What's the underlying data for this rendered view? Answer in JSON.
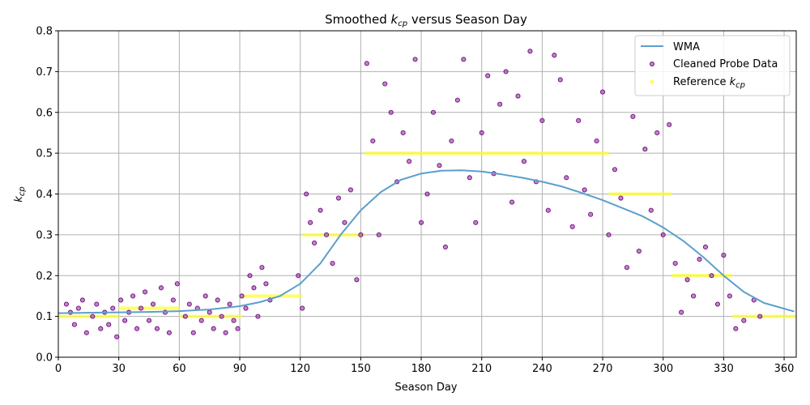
{
  "chart_data": {
    "type": "line+scatter",
    "title": "Smoothed k_cp versus Season Day",
    "title_parts": {
      "prefix": "Smoothed ",
      "symbol": "k",
      "sub": "cp",
      "suffix": " versus Season Day"
    },
    "xlabel": "Season Day",
    "ylabel": {
      "symbol": "k",
      "sub": "cp"
    },
    "xlim": [
      0,
      366
    ],
    "ylim": [
      0.0,
      0.8
    ],
    "xticks": [
      0,
      30,
      60,
      90,
      120,
      150,
      180,
      210,
      240,
      270,
      300,
      330,
      360
    ],
    "yticks": [
      0.0,
      0.1,
      0.2,
      0.3,
      0.4,
      0.5,
      0.6,
      0.7,
      0.8
    ],
    "grid": true,
    "legend_position": "top-right",
    "legend": [
      {
        "label": "WMA"
      },
      {
        "label": "Cleaned Probe Data"
      },
      {
        "label_prefix": "Reference ",
        "symbol": "k",
        "sub": "cp"
      }
    ],
    "series": [
      {
        "name": "WMA",
        "kind": "line",
        "color": "#5b9fcb",
        "x": [
          0,
          15,
          30,
          45,
          60,
          75,
          90,
          100,
          110,
          120,
          130,
          140,
          150,
          160,
          170,
          180,
          190,
          200,
          210,
          220,
          230,
          240,
          250,
          260,
          270,
          280,
          290,
          300,
          310,
          320,
          330,
          340,
          350,
          365
        ],
        "y": [
          0.108,
          0.109,
          0.11,
          0.111,
          0.113,
          0.117,
          0.125,
          0.135,
          0.15,
          0.18,
          0.23,
          0.3,
          0.36,
          0.405,
          0.435,
          0.45,
          0.457,
          0.458,
          0.455,
          0.448,
          0.44,
          0.43,
          0.418,
          0.402,
          0.385,
          0.365,
          0.345,
          0.318,
          0.285,
          0.245,
          0.2,
          0.16,
          0.133,
          0.112
        ]
      },
      {
        "name": "Cleaned Probe Data",
        "kind": "scatter",
        "color": "#9b30a8",
        "x": [
          4,
          6,
          8,
          10,
          12,
          14,
          17,
          19,
          21,
          23,
          25,
          27,
          29,
          31,
          33,
          35,
          37,
          39,
          41,
          43,
          45,
          47,
          49,
          51,
          53,
          55,
          57,
          59,
          63,
          65,
          67,
          69,
          71,
          73,
          75,
          77,
          79,
          81,
          83,
          85,
          87,
          89,
          91,
          93,
          95,
          97,
          99,
          101,
          103,
          105,
          119,
          121,
          123,
          125,
          127,
          130,
          133,
          136,
          139,
          142,
          145,
          148,
          150,
          153,
          156,
          159,
          162,
          165,
          168,
          171,
          174,
          177,
          180,
          183,
          186,
          189,
          192,
          195,
          198,
          201,
          204,
          207,
          210,
          213,
          216,
          219,
          222,
          225,
          228,
          231,
          234,
          237,
          240,
          243,
          246,
          249,
          252,
          255,
          258,
          261,
          264,
          267,
          270,
          273,
          276,
          279,
          282,
          285,
          288,
          291,
          294,
          297,
          300,
          303,
          306,
          309,
          312,
          315,
          318,
          321,
          324,
          327,
          330,
          333,
          336,
          340,
          345,
          348
        ],
        "y": [
          0.13,
          0.11,
          0.08,
          0.12,
          0.14,
          0.06,
          0.1,
          0.13,
          0.07,
          0.11,
          0.08,
          0.12,
          0.05,
          0.14,
          0.09,
          0.11,
          0.15,
          0.07,
          0.12,
          0.16,
          0.09,
          0.13,
          0.07,
          0.17,
          0.11,
          0.06,
          0.14,
          0.18,
          0.1,
          0.13,
          0.06,
          0.12,
          0.09,
          0.15,
          0.11,
          0.07,
          0.14,
          0.1,
          0.06,
          0.13,
          0.09,
          0.07,
          0.15,
          0.12,
          0.2,
          0.17,
          0.1,
          0.22,
          0.18,
          0.14,
          0.2,
          0.12,
          0.4,
          0.33,
          0.28,
          0.36,
          0.3,
          0.23,
          0.39,
          0.33,
          0.41,
          0.19,
          0.3,
          0.72,
          0.53,
          0.3,
          0.67,
          0.6,
          0.43,
          0.55,
          0.48,
          0.73,
          0.33,
          0.4,
          0.6,
          0.47,
          0.27,
          0.53,
          0.63,
          0.73,
          0.44,
          0.33,
          0.55,
          0.69,
          0.45,
          0.62,
          0.7,
          0.38,
          0.64,
          0.48,
          0.75,
          0.43,
          0.58,
          0.36,
          0.74,
          0.68,
          0.44,
          0.32,
          0.58,
          0.41,
          0.35,
          0.53,
          0.65,
          0.3,
          0.46,
          0.39,
          0.22,
          0.59,
          0.26,
          0.51,
          0.36,
          0.55,
          0.3,
          0.57,
          0.23,
          0.11,
          0.19,
          0.15,
          0.24,
          0.27,
          0.2,
          0.13,
          0.25,
          0.15,
          0.07,
          0.09,
          0.14,
          0.1
        ]
      },
      {
        "name": "Reference k_cp",
        "kind": "step",
        "color": "#ffff33",
        "segments": [
          {
            "x0": 0,
            "x1": 30,
            "y": 0.1
          },
          {
            "x0": 30,
            "x1": 60,
            "y": 0.12
          },
          {
            "x0": 60,
            "x1": 91,
            "y": 0.1
          },
          {
            "x0": 91,
            "x1": 121,
            "y": 0.15
          },
          {
            "x0": 121,
            "x1": 152,
            "y": 0.3
          },
          {
            "x0": 152,
            "x1": 273,
            "y": 0.5
          },
          {
            "x0": 273,
            "x1": 304,
            "y": 0.4
          },
          {
            "x0": 304,
            "x1": 334,
            "y": 0.2
          },
          {
            "x0": 334,
            "x1": 366,
            "y": 0.1
          }
        ]
      }
    ]
  }
}
